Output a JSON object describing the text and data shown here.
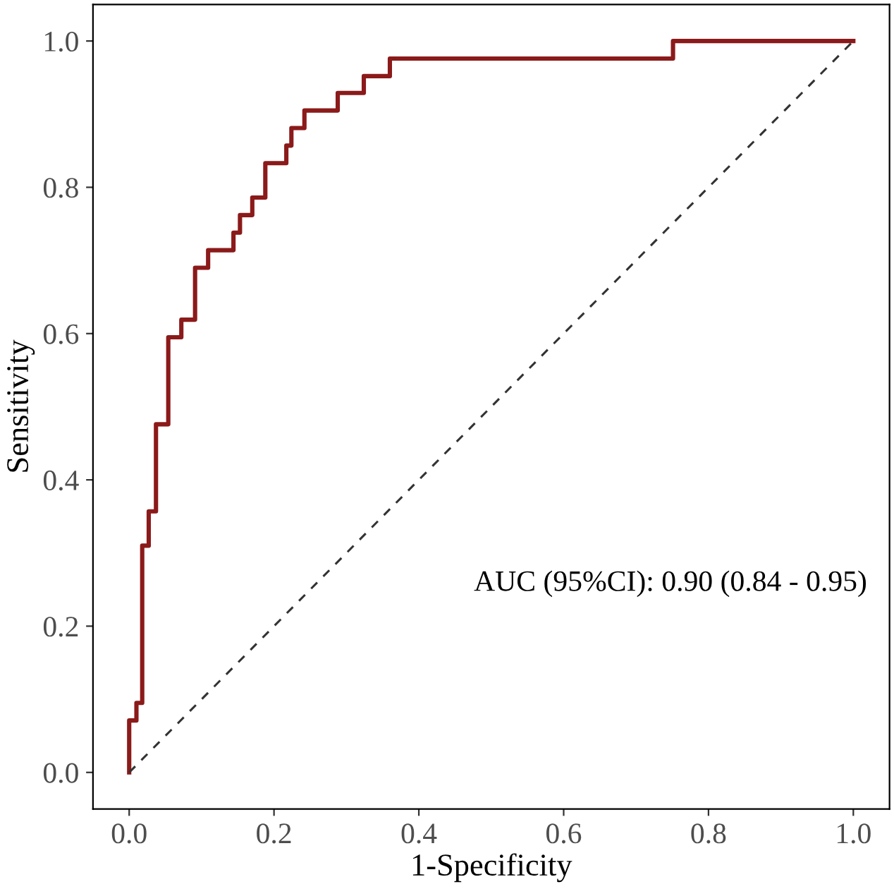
{
  "chart_data": {
    "type": "step",
    "xlabel": "1-Specificity",
    "ylabel": "Sensitivity",
    "xlim": [
      -0.05,
      1.05
    ],
    "ylim": [
      -0.05,
      1.05
    ],
    "xticks": [
      {
        "value": 0,
        "label": "0.0"
      },
      0.2,
      0.4,
      0.6,
      0.8,
      {
        "value": 1,
        "label": "1.0"
      }
    ],
    "yticks": [
      {
        "value": 0,
        "label": "0.0"
      },
      0.2,
      0.4,
      0.6,
      0.8,
      {
        "value": 1,
        "label": "1.0"
      }
    ],
    "grid": false,
    "legend": false,
    "series": [
      {
        "color": "#8b1a1a",
        "line_style": "solid",
        "x": [
          0,
          0.01,
          0.018,
          0.027,
          0.037,
          0.054,
          0.072,
          0.091,
          0.109,
          0.144,
          0.153,
          0.17,
          0.188,
          0.217,
          0.224,
          0.242,
          0.288,
          0.324,
          0.36,
          0.751,
          1.0
        ],
        "values": [
          0,
          0.071,
          0.095,
          0.31,
          0.357,
          0.476,
          0.595,
          0.619,
          0.69,
          0.714,
          0.738,
          0.762,
          0.786,
          0.833,
          0.857,
          0.881,
          0.905,
          0.929,
          0.952,
          0.976,
          1.0
        ]
      },
      {
        "type": "line",
        "color": "#333333",
        "line_style": "dashed",
        "x": [
          0,
          1
        ],
        "values": [
          0,
          1
        ]
      }
    ],
    "annotations": [
      "AUC (95%CI): 0.90 (0.84 - 0.95)"
    ]
  }
}
